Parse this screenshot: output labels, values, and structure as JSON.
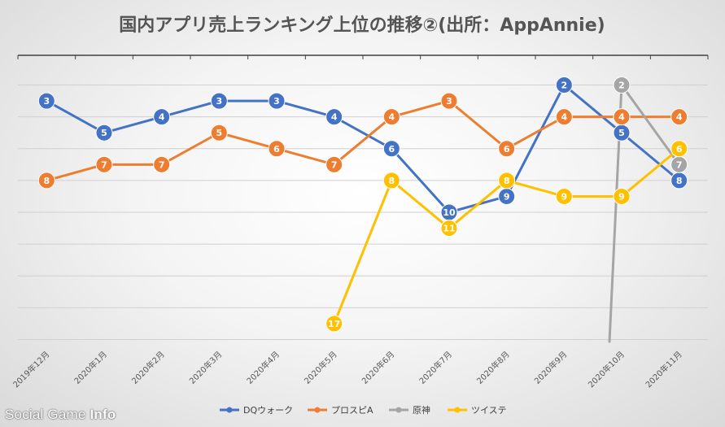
{
  "chart_data": {
    "type": "line",
    "title": "国内アプリ売上ランキング上位の推移②(出所：AppAnnie)",
    "xlabel": "",
    "ylabel": "",
    "y_axis": "rank (inverted, no tick labels)",
    "ylim": [
      1,
      19
    ],
    "categories": [
      "2019年12月",
      "2020年1月",
      "2020年2月",
      "2020年3月",
      "2020年4月",
      "2020年5月",
      "2020年6月",
      "2020年7月",
      "2020年8月",
      "2020年9月",
      "2020年10月",
      "2020年11月"
    ],
    "series": [
      {
        "name": "DQウォーク",
        "color": "#4472C4",
        "values": [
          3,
          5,
          4,
          3,
          3,
          4,
          6,
          10,
          9,
          2,
          5,
          8
        ]
      },
      {
        "name": "プロスピA",
        "color": "#ED7D31",
        "values": [
          8,
          7,
          7,
          5,
          6,
          7,
          4,
          3,
          6,
          4,
          4,
          4
        ]
      },
      {
        "name": "原神",
        "color": "#A5A5A5",
        "values": [
          null,
          null,
          null,
          null,
          null,
          null,
          null,
          null,
          null,
          null,
          2,
          7
        ],
        "note": "line enters from below chart at 2020年10月"
      },
      {
        "name": "ツイステ",
        "color": "#FFC000",
        "values": [
          null,
          null,
          null,
          null,
          null,
          17,
          8,
          11,
          8,
          9,
          9,
          6
        ]
      }
    ],
    "grid": true,
    "legend": "bottom"
  },
  "watermark": {
    "part1": "Social Game ",
    "part2": "Info"
  }
}
